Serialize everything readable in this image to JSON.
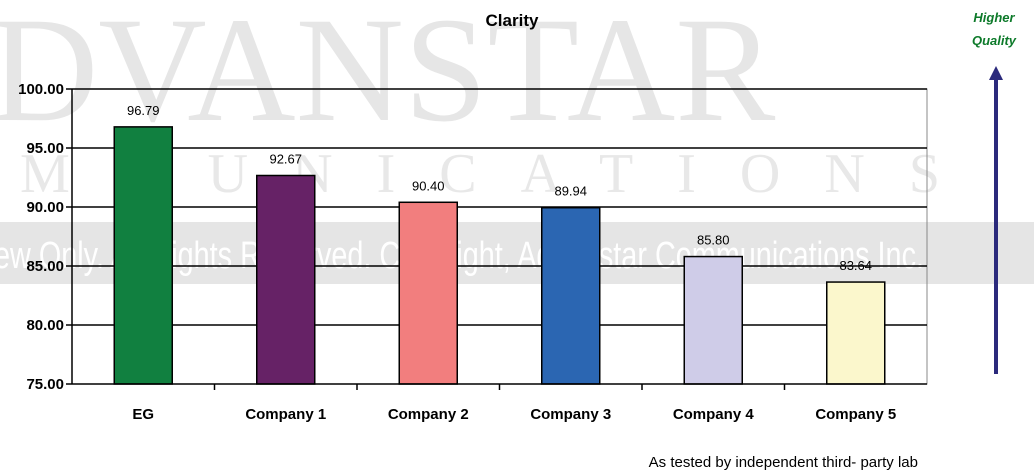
{
  "watermark": {
    "line1": "DVANSTAR",
    "line2": "MMUNICATIONS",
    "band": "ew Only. All Rights Reserved. Copyright, Advanstar Communications Inc."
  },
  "annotations": {
    "higher_quality": [
      "Higher",
      "Quality"
    ],
    "footer": "As tested by independent third- party lab"
  },
  "colors": {
    "arrow": "#2b2a7c",
    "axis": "#000000"
  },
  "chart_data": {
    "type": "bar",
    "title": "Clarity",
    "xlabel": "",
    "ylabel": "",
    "categories": [
      "EG",
      "Company 1",
      "Company 2",
      "Company 3",
      "Company 4",
      "Company 5"
    ],
    "values": [
      96.79,
      92.67,
      90.4,
      89.94,
      85.8,
      83.64
    ],
    "value_labels": [
      "96.79",
      "92.67",
      "90.40",
      "89.94",
      "85.80",
      "83.64"
    ],
    "bar_colors": [
      "#118040",
      "#662266",
      "#f27e7e",
      "#2b66b2",
      "#cfcce8",
      "#fbf7cc"
    ],
    "ylim": [
      75,
      100
    ],
    "yticks": [
      100,
      95,
      90,
      85,
      80,
      75
    ],
    "ytick_labels": [
      "100.00",
      "95.00",
      "90.00",
      "85.00",
      "80.00",
      "75.00"
    ],
    "grid": true,
    "legend": "none"
  }
}
